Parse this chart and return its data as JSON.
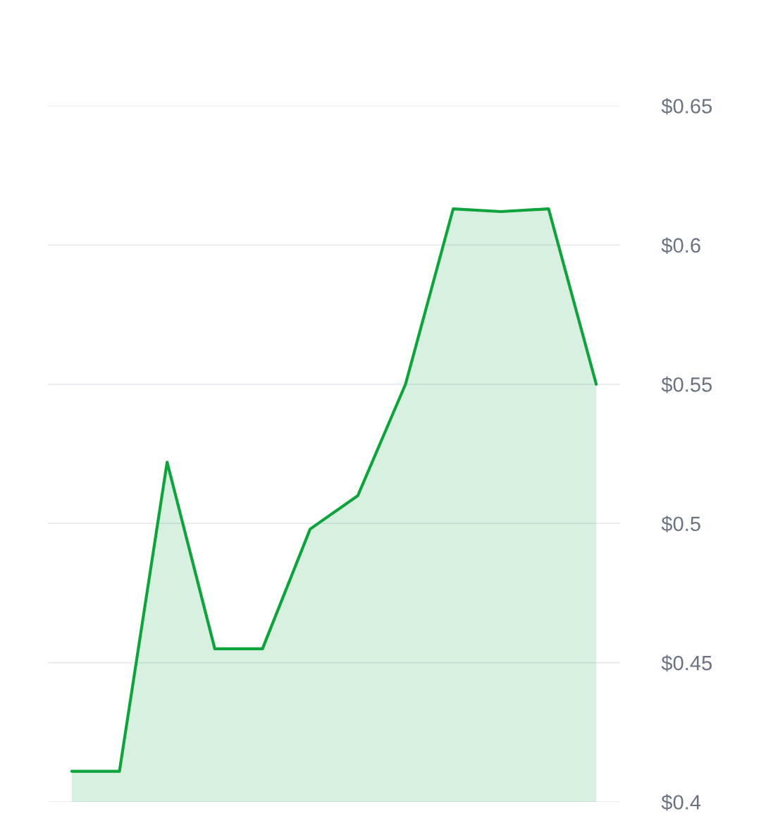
{
  "chart_data": {
    "type": "area",
    "categories": [
      null,
      null,
      null,
      null,
      null,
      null,
      null,
      null,
      null,
      null,
      null,
      null
    ],
    "series": [
      {
        "color": "#0ea33c",
        "values": [
          0.411,
          0.411,
          0.522,
          0.455,
          0.455,
          0.498,
          0.51,
          0.55,
          0.613,
          0.612,
          0.613,
          0.55
        ]
      }
    ],
    "ylim": [
      0.4,
      0.65
    ],
    "yticks": [
      {
        "value": 0.4,
        "label": "$0.4"
      },
      {
        "value": 0.45,
        "label": "$0.45"
      },
      {
        "value": 0.5,
        "label": "$0.5"
      },
      {
        "value": 0.55,
        "label": "$0.55"
      },
      {
        "value": 0.6,
        "label": "$0.6"
      },
      {
        "value": 0.65,
        "label": "$0.65"
      }
    ],
    "grid": "y",
    "tick_labels": "y"
  }
}
